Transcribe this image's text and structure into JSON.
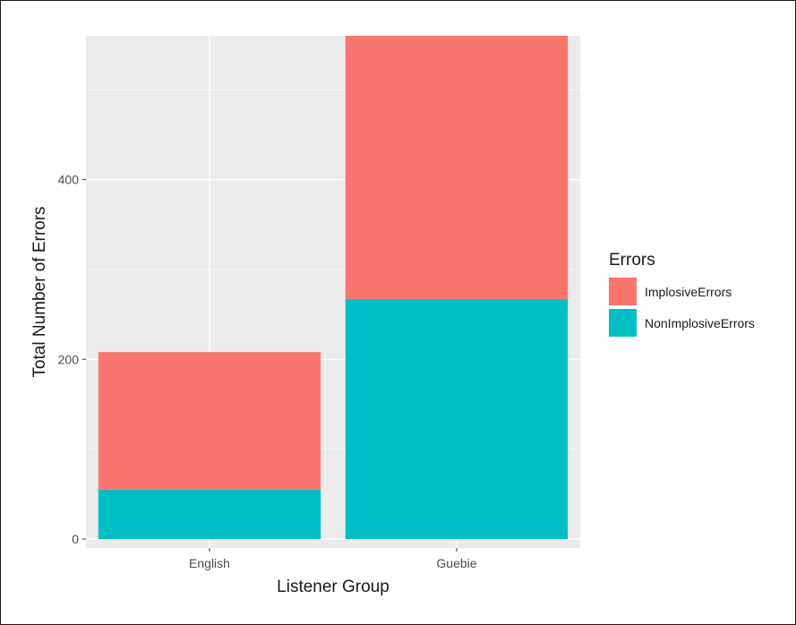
{
  "chart_data": {
    "type": "bar",
    "stacked": true,
    "categories": [
      "English",
      "Guebie"
    ],
    "series": [
      {
        "name": "NonImplosiveErrors",
        "color": "#00BFC4",
        "values": [
          55,
          267
        ]
      },
      {
        "name": "ImplosiveErrors",
        "color": "#F8766D",
        "values": [
          153,
          293
        ]
      }
    ],
    "title": "",
    "xlabel": "Listener Group",
    "ylabel": "Total Number of Errors",
    "ylim": [
      -10,
      560
    ],
    "yticks": [
      0,
      200,
      400
    ],
    "y_minor_ticks": [
      100,
      300,
      500
    ],
    "grid": true,
    "panel_background": "#EBEBEB",
    "legend": {
      "title": "Errors",
      "position": "right",
      "entries": [
        {
          "label": "ImplosiveErrors",
          "color": "#F8766D"
        },
        {
          "label": "NonImplosiveErrors",
          "color": "#00BFC4"
        }
      ]
    }
  }
}
